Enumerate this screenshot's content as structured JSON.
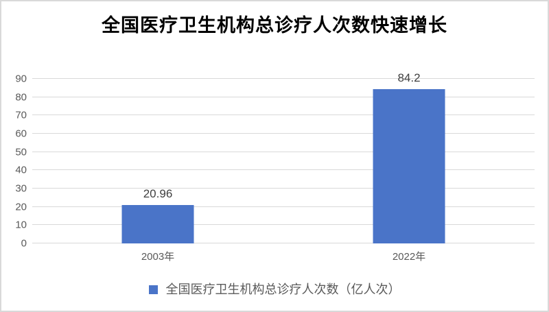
{
  "title": "全国医疗卫生机构总诊疗人次数快速增长",
  "colors": {
    "bar": "#4a74c8",
    "gridline": "#d9d9d9",
    "axis_label": "#595959",
    "data_label": "#404040",
    "title": "#000000",
    "border": "#d9d9d9",
    "background": "#ffffff"
  },
  "legend": {
    "label": "全国医疗卫生机构总诊疗人次数（亿人次）",
    "swatch_color": "#4a74c8",
    "position": "bottom"
  },
  "chart_data": {
    "type": "bar",
    "title": "全国医疗卫生机构总诊疗人次数快速增长",
    "categories": [
      "2003年",
      "2022年"
    ],
    "values": [
      20.96,
      84.2
    ],
    "data_labels": [
      "20.96",
      "84.2"
    ],
    "series_name": "全国医疗卫生机构总诊疗人次数（亿人次）",
    "xlabel": "",
    "ylabel": "",
    "ylim": [
      0,
      90
    ],
    "yticks": [
      0,
      10,
      20,
      30,
      40,
      50,
      60,
      70,
      80,
      90
    ],
    "grid": true,
    "legend_position": "bottom"
  }
}
